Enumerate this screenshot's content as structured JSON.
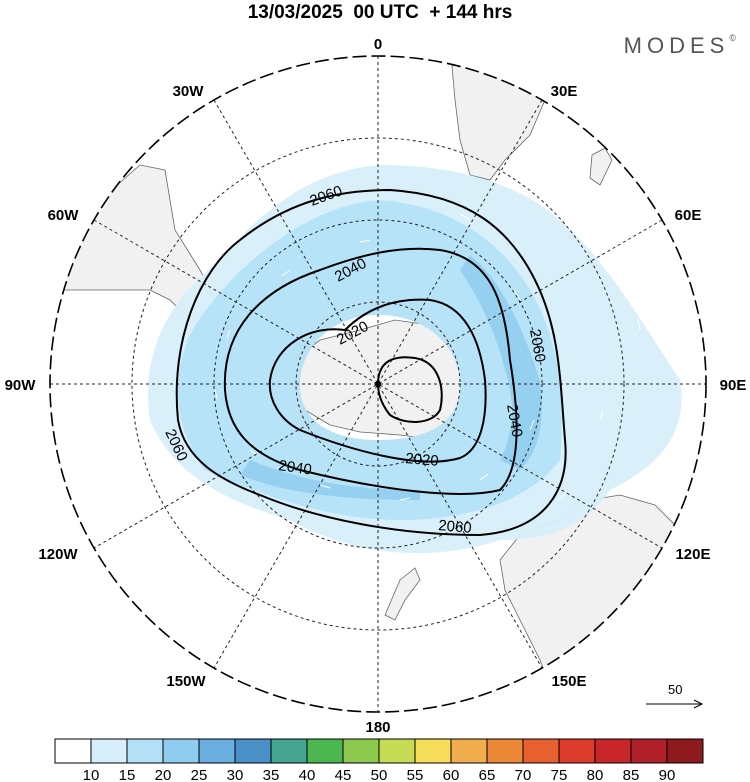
{
  "title": "13/03/2025  00 UTC  + 144 hrs",
  "logo": "MODES",
  "logo_mark": "©",
  "map": {
    "projection": "south-polar-stereographic",
    "longitude_labels": [
      {
        "text": "0",
        "lon": 0
      },
      {
        "text": "30E",
        "lon": 30
      },
      {
        "text": "60E",
        "lon": 60
      },
      {
        "text": "90E",
        "lon": 90
      },
      {
        "text": "120E",
        "lon": 120
      },
      {
        "text": "150E",
        "lon": 150
      },
      {
        "text": "180",
        "lon": 180
      },
      {
        "text": "150W",
        "lon": -150
      },
      {
        "text": "120W",
        "lon": -120
      },
      {
        "text": "90W",
        "lon": -90
      },
      {
        "text": "60W",
        "lon": -60
      },
      {
        "text": "30W",
        "lon": -30
      }
    ],
    "contour_labels": [
      "2060",
      "2040",
      "2020",
      "2020",
      "2040",
      "2060",
      "2060",
      "2040",
      "2060"
    ],
    "reference_vector": "50"
  },
  "colorbar": {
    "ticks": [
      "10",
      "15",
      "20",
      "25",
      "30",
      "35",
      "40",
      "45",
      "50",
      "55",
      "60",
      "65",
      "70",
      "75",
      "80",
      "85",
      "90"
    ],
    "colors": [
      "#ffffff",
      "#d7effb",
      "#b4e1f7",
      "#8fccef",
      "#6aaedf",
      "#4a8fc8",
      "#45a58e",
      "#4cb751",
      "#8cc94c",
      "#c6dc54",
      "#f6dd5a",
      "#f2ad4e",
      "#ec8938",
      "#e8602f",
      "#dc3a2b",
      "#c8262a",
      "#b0202a",
      "#8e1a20"
    ]
  }
}
